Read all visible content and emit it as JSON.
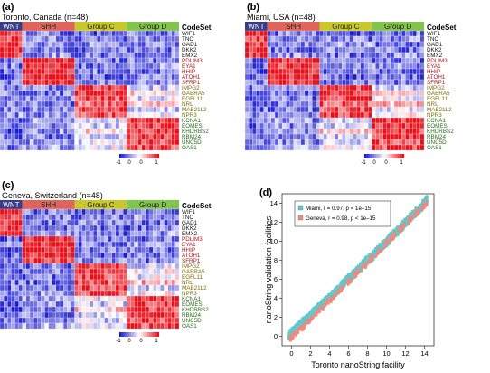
{
  "colors": {
    "low": "#1b1bd0",
    "mid": "#ffffff",
    "high": "#e8101a",
    "wnt": "#3b3b8e",
    "shh": "#e0645a",
    "group_c": "#c9c82a",
    "group_d": "#7fc64a",
    "miami_points": "#5ec9cf",
    "geneva_points": "#ee8a7e"
  },
  "genes": [
    "WIF1",
    "TNC",
    "GAD1",
    "DKK2",
    "EMX2",
    "PDLIM3",
    "EYA1",
    "HHIP",
    "ATOH1",
    "SFRP1",
    "IMPG2",
    "GABRA5",
    "EGFL11",
    "NRL",
    "MAB21L2",
    "NPR3",
    "KCNA1",
    "EOMES",
    "KHDRBS2",
    "RBM24",
    "UNC5D",
    "OAS1"
  ],
  "gene_text_colors": [
    "#111111",
    "#111111",
    "#111111",
    "#111111",
    "#111111",
    "#b0151a",
    "#b0151a",
    "#b0151a",
    "#b0151a",
    "#b0151a",
    "#7a6a0a",
    "#7a6a0a",
    "#7a6a0a",
    "#7a6a0a",
    "#7a6a0a",
    "#7a6a0a",
    "#2a6a1a",
    "#2a6a1a",
    "#2a6a1a",
    "#2a6a1a",
    "#2a6a1a",
    "#2a6a1a"
  ],
  "codeset_label": "CodeSet",
  "groups": [
    {
      "label": "WNT",
      "color_key": "wnt",
      "samples": 6
    },
    {
      "label": "SHH",
      "color_key": "shh",
      "samples": 14
    },
    {
      "label": "Group C",
      "color_key": "group_c",
      "samples": 14
    },
    {
      "label": "Group D",
      "color_key": "group_d",
      "samples": 14
    }
  ],
  "scale_labels": [
    "-1",
    "0",
    "0",
    "1"
  ],
  "panels": [
    {
      "letter": "(a)",
      "title": "Toronto, Canada (n=48)"
    },
    {
      "letter": "(b)",
      "title": "Miami, USA (n=48)"
    },
    {
      "letter": "(c)",
      "title": "Geneva, Switzerland (n=48)"
    },
    {
      "letter": "(d)"
    }
  ],
  "chart_data": [
    {
      "type": "heatmap",
      "title": "Toronto, Canada (n=48)",
      "rows": [
        "WIF1",
        "TNC",
        "GAD1",
        "DKK2",
        "EMX2",
        "PDLIM3",
        "EYA1",
        "HHIP",
        "ATOH1",
        "SFRP1",
        "IMPG2",
        "GABRA5",
        "EGFL11",
        "NRL",
        "MAB21L2",
        "NPR3",
        "KCNA1",
        "EOMES",
        "KHDRBS2",
        "RBM24",
        "UNC5D",
        "OAS1"
      ],
      "column_groups": [
        [
          "WNT",
          6
        ],
        [
          "SHH",
          14
        ],
        [
          "Group C",
          14
        ],
        [
          "Group D",
          14
        ]
      ],
      "block_values": [
        [
          1.0,
          -0.6,
          -0.7,
          -0.6
        ],
        [
          0.9,
          -0.5,
          -0.6,
          -0.5
        ],
        [
          0.9,
          -0.6,
          -0.5,
          -0.6
        ],
        [
          1.0,
          -0.6,
          -0.6,
          -0.6
        ],
        [
          0.9,
          -0.5,
          -0.6,
          -0.5
        ],
        [
          -0.7,
          1.0,
          -0.6,
          -0.6
        ],
        [
          -0.6,
          0.9,
          -0.6,
          -0.5
        ],
        [
          -0.7,
          1.0,
          -0.6,
          -0.6
        ],
        [
          -0.7,
          1.0,
          -0.7,
          -0.6
        ],
        [
          -0.6,
          0.9,
          -0.6,
          -0.6
        ],
        [
          -0.6,
          -0.6,
          0.9,
          -0.2
        ],
        [
          -0.6,
          -0.6,
          0.9,
          0.1
        ],
        [
          -0.6,
          -0.6,
          0.8,
          -0.1
        ],
        [
          -0.6,
          -0.6,
          0.7,
          0.3
        ],
        [
          -0.6,
          -0.6,
          0.8,
          -0.2
        ],
        [
          -0.5,
          -0.5,
          0.8,
          0.0
        ],
        [
          -0.7,
          -0.5,
          -0.1,
          0.9
        ],
        [
          -0.7,
          -0.5,
          -0.2,
          0.9
        ],
        [
          -0.7,
          -0.5,
          0.2,
          0.8
        ],
        [
          -0.6,
          -0.6,
          -0.2,
          0.9
        ],
        [
          -0.6,
          -0.5,
          -0.2,
          0.8
        ],
        [
          -0.6,
          -0.4,
          0.0,
          0.8
        ]
      ],
      "value_range": [
        -1,
        1
      ]
    },
    {
      "type": "heatmap",
      "title": "Miami, USA (n=48)",
      "rows": [
        "WIF1",
        "TNC",
        "GAD1",
        "DKK2",
        "EMX2",
        "PDLIM3",
        "EYA1",
        "HHIP",
        "ATOH1",
        "SFRP1",
        "IMPG2",
        "GABRA5",
        "EGFL11",
        "NRL",
        "MAB21L2",
        "NPR3",
        "KCNA1",
        "EOMES",
        "KHDRBS2",
        "RBM24",
        "UNC5D",
        "OAS1"
      ],
      "column_groups": [
        [
          "WNT",
          6
        ],
        [
          "SHH",
          14
        ],
        [
          "Group C",
          14
        ],
        [
          "Group D",
          14
        ]
      ],
      "block_values": [
        [
          1.0,
          -0.6,
          -0.7,
          -0.6
        ],
        [
          0.9,
          -0.5,
          -0.6,
          -0.5
        ],
        [
          0.9,
          -0.6,
          -0.5,
          -0.6
        ],
        [
          1.0,
          -0.6,
          -0.6,
          -0.6
        ],
        [
          0.9,
          -0.5,
          -0.6,
          -0.5
        ],
        [
          -0.7,
          1.0,
          -0.6,
          -0.6
        ],
        [
          -0.6,
          0.9,
          -0.6,
          -0.5
        ],
        [
          -0.7,
          1.0,
          -0.6,
          -0.6
        ],
        [
          -0.7,
          1.0,
          -0.7,
          -0.6
        ],
        [
          -0.6,
          0.9,
          -0.6,
          -0.6
        ],
        [
          -0.6,
          -0.6,
          0.9,
          -0.2
        ],
        [
          -0.6,
          -0.6,
          0.9,
          0.1
        ],
        [
          -0.6,
          -0.6,
          0.8,
          -0.1
        ],
        [
          -0.6,
          -0.6,
          0.7,
          0.3
        ],
        [
          -0.6,
          -0.6,
          0.8,
          -0.2
        ],
        [
          -0.5,
          -0.5,
          0.8,
          0.0
        ],
        [
          -0.7,
          -0.5,
          -0.1,
          0.9
        ],
        [
          -0.7,
          -0.5,
          -0.2,
          0.9
        ],
        [
          -0.7,
          -0.5,
          0.2,
          0.8
        ],
        [
          -0.6,
          -0.6,
          -0.2,
          0.9
        ],
        [
          -0.6,
          -0.5,
          -0.2,
          0.8
        ],
        [
          -0.6,
          -0.4,
          0.0,
          0.8
        ]
      ],
      "value_range": [
        -1,
        1
      ]
    },
    {
      "type": "heatmap",
      "title": "Geneva, Switzerland (n=48)",
      "rows": [
        "WIF1",
        "TNC",
        "GAD1",
        "DKK2",
        "EMX2",
        "PDLIM3",
        "EYA1",
        "HHIP",
        "ATOH1",
        "SFRP1",
        "IMPG2",
        "GABRA5",
        "EGFL11",
        "NRL",
        "MAB21L2",
        "NPR3",
        "KCNA1",
        "EOMES",
        "KHDRBS2",
        "RBM24",
        "UNC5D",
        "OAS1"
      ],
      "column_groups": [
        [
          "WNT",
          6
        ],
        [
          "SHH",
          14
        ],
        [
          "Group C",
          14
        ],
        [
          "Group D",
          14
        ]
      ],
      "block_values": [
        [
          1.0,
          -0.6,
          -0.7,
          -0.6
        ],
        [
          0.9,
          -0.5,
          -0.6,
          -0.5
        ],
        [
          0.9,
          -0.6,
          -0.5,
          -0.6
        ],
        [
          1.0,
          -0.6,
          -0.6,
          -0.6
        ],
        [
          0.9,
          -0.5,
          -0.6,
          -0.5
        ],
        [
          -0.7,
          1.0,
          -0.6,
          -0.6
        ],
        [
          -0.6,
          0.9,
          -0.6,
          -0.5
        ],
        [
          -0.7,
          1.0,
          -0.6,
          -0.6
        ],
        [
          -0.7,
          1.0,
          -0.7,
          -0.6
        ],
        [
          -0.6,
          0.9,
          -0.6,
          -0.6
        ],
        [
          -0.6,
          -0.6,
          0.9,
          -0.2
        ],
        [
          -0.6,
          -0.6,
          0.9,
          0.1
        ],
        [
          -0.6,
          -0.6,
          0.8,
          -0.1
        ],
        [
          -0.6,
          -0.6,
          0.7,
          0.3
        ],
        [
          -0.6,
          -0.6,
          0.8,
          -0.2
        ],
        [
          -0.5,
          -0.5,
          0.8,
          0.0
        ],
        [
          -0.7,
          -0.5,
          -0.1,
          0.9
        ],
        [
          -0.7,
          -0.5,
          -0.2,
          0.9
        ],
        [
          -0.7,
          -0.5,
          0.2,
          0.8
        ],
        [
          -0.6,
          -0.6,
          -0.2,
          0.9
        ],
        [
          -0.6,
          -0.5,
          -0.2,
          0.8
        ],
        [
          -0.6,
          -0.4,
          0.0,
          0.8
        ]
      ],
      "value_range": [
        -1,
        1
      ]
    },
    {
      "type": "scatter",
      "xlabel": "Toronto nanoString facility",
      "ylabel": "nanoString validation facilities",
      "xlim": [
        -1,
        15
      ],
      "ylim": [
        -1,
        15
      ],
      "xticks": [
        0,
        2,
        4,
        6,
        8,
        10,
        12,
        14
      ],
      "yticks": [
        0,
        2,
        4,
        6,
        8,
        10,
        12,
        14
      ],
      "legend_position": "top-left",
      "series": [
        {
          "name": "Miami, r = 0.97, p < 1e–15",
          "color_key": "miami_points",
          "x": [
            0.0,
            0.3,
            0.6,
            1.0,
            1.4,
            1.8,
            2.2,
            2.6,
            3.0,
            3.5,
            4.0,
            4.5,
            5.0,
            5.5,
            6.0,
            6.5,
            7.0,
            7.5,
            8.0,
            8.5,
            9.0,
            9.5,
            10.0,
            10.5,
            11.0,
            11.5,
            12.0,
            12.5,
            13.0,
            13.5,
            14.0
          ],
          "y": [
            0.4,
            0.6,
            0.9,
            1.3,
            1.6,
            1.9,
            2.4,
            2.8,
            3.2,
            3.6,
            4.1,
            4.6,
            5.0,
            5.6,
            6.1,
            6.5,
            7.0,
            7.6,
            8.0,
            8.4,
            9.0,
            9.5,
            9.9,
            10.5,
            11.0,
            11.4,
            12.0,
            12.5,
            13.0,
            13.4,
            14.1
          ]
        },
        {
          "name": "Geneva, r = 0.98, p < 1e–15",
          "color_key": "geneva_points",
          "x": [
            0.1,
            0.5,
            1.2,
            2.0,
            2.8,
            3.6,
            4.4,
            5.2,
            6.0,
            6.8,
            7.6,
            8.4,
            9.2,
            10.0,
            10.8,
            11.6,
            12.4,
            13.2,
            14.0
          ],
          "y": [
            0.0,
            0.4,
            1.0,
            1.8,
            2.6,
            3.4,
            4.1,
            5.0,
            5.7,
            6.6,
            7.3,
            8.2,
            9.0,
            9.8,
            10.6,
            11.4,
            12.2,
            13.0,
            13.8
          ]
        }
      ]
    }
  ]
}
